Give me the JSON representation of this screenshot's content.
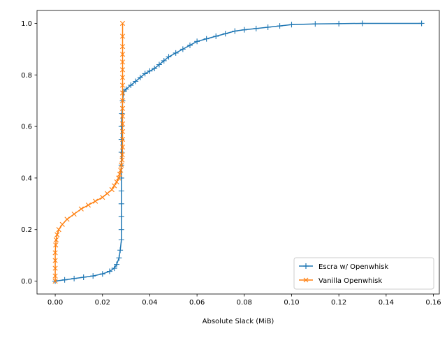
{
  "chart_data": {
    "type": "line",
    "title": "",
    "xlabel": "Absolute Slack (MiB)",
    "ylabel": "",
    "xlim": [
      -0.0077,
      0.1625
    ],
    "ylim": [
      -0.05,
      1.05
    ],
    "xticks": [
      "0.00",
      "0.02",
      "0.04",
      "0.06",
      "0.08",
      "0.10",
      "0.12",
      "0.14",
      "0.16"
    ],
    "xtick_values": [
      0,
      0.02,
      0.04,
      0.06,
      0.08,
      0.1,
      0.12,
      0.14,
      0.16
    ],
    "yticks": [
      "0.0",
      "0.2",
      "0.4",
      "0.6",
      "0.8",
      "1.0"
    ],
    "ytick_values": [
      0,
      0.2,
      0.4,
      0.6,
      0.8,
      1.0
    ],
    "grid": false,
    "legend_position": "lower-right",
    "series": [
      {
        "name": "Escra w/ Openwhisk",
        "color": "#1f77b4",
        "marker": "plus",
        "x": [
          0.0,
          0.004,
          0.008,
          0.012,
          0.016,
          0.02,
          0.023,
          0.025,
          0.026,
          0.027,
          0.0275,
          0.028,
          0.028,
          0.028,
          0.028,
          0.028,
          0.028,
          0.028,
          0.028,
          0.028,
          0.028,
          0.0282,
          0.0285,
          0.029,
          0.03,
          0.032,
          0.034,
          0.036,
          0.038,
          0.04,
          0.042,
          0.044,
          0.046,
          0.048,
          0.051,
          0.054,
          0.057,
          0.06,
          0.064,
          0.068,
          0.072,
          0.076,
          0.08,
          0.085,
          0.09,
          0.095,
          0.1,
          0.11,
          0.12,
          0.13,
          0.155
        ],
        "y": [
          0.0,
          0.005,
          0.01,
          0.015,
          0.02,
          0.028,
          0.038,
          0.05,
          0.065,
          0.09,
          0.12,
          0.16,
          0.2,
          0.25,
          0.3,
          0.35,
          0.4,
          0.45,
          0.5,
          0.55,
          0.6,
          0.65,
          0.7,
          0.735,
          0.745,
          0.76,
          0.775,
          0.79,
          0.805,
          0.815,
          0.825,
          0.84,
          0.855,
          0.87,
          0.885,
          0.9,
          0.915,
          0.93,
          0.94,
          0.95,
          0.96,
          0.97,
          0.975,
          0.98,
          0.985,
          0.99,
          0.995,
          0.998,
          0.999,
          1.0,
          1.0
        ]
      },
      {
        "name": "Vanilla Openwhisk",
        "color": "#ff7f0e",
        "marker": "x",
        "x": [
          0.0,
          0.0,
          0.0,
          0.0,
          0.0,
          0.0002,
          0.0004,
          0.0008,
          0.0015,
          0.003,
          0.005,
          0.008,
          0.011,
          0.014,
          0.017,
          0.02,
          0.022,
          0.024,
          0.025,
          0.026,
          0.0268,
          0.0273,
          0.0277,
          0.028,
          0.0283,
          0.0284,
          0.0285,
          0.0285,
          0.0285,
          0.0285,
          0.0285,
          0.0285,
          0.0285,
          0.0285,
          0.0285,
          0.0285,
          0.0285,
          0.0285,
          0.0285,
          0.0285,
          0.0285,
          0.0285
        ],
        "y": [
          0.0,
          0.02,
          0.05,
          0.08,
          0.11,
          0.14,
          0.16,
          0.18,
          0.2,
          0.22,
          0.24,
          0.26,
          0.28,
          0.295,
          0.31,
          0.325,
          0.34,
          0.355,
          0.37,
          0.385,
          0.4,
          0.415,
          0.43,
          0.45,
          0.47,
          0.49,
          0.52,
          0.55,
          0.58,
          0.61,
          0.64,
          0.67,
          0.7,
          0.73,
          0.76,
          0.79,
          0.82,
          0.85,
          0.88,
          0.91,
          0.95,
          1.0
        ]
      }
    ]
  }
}
